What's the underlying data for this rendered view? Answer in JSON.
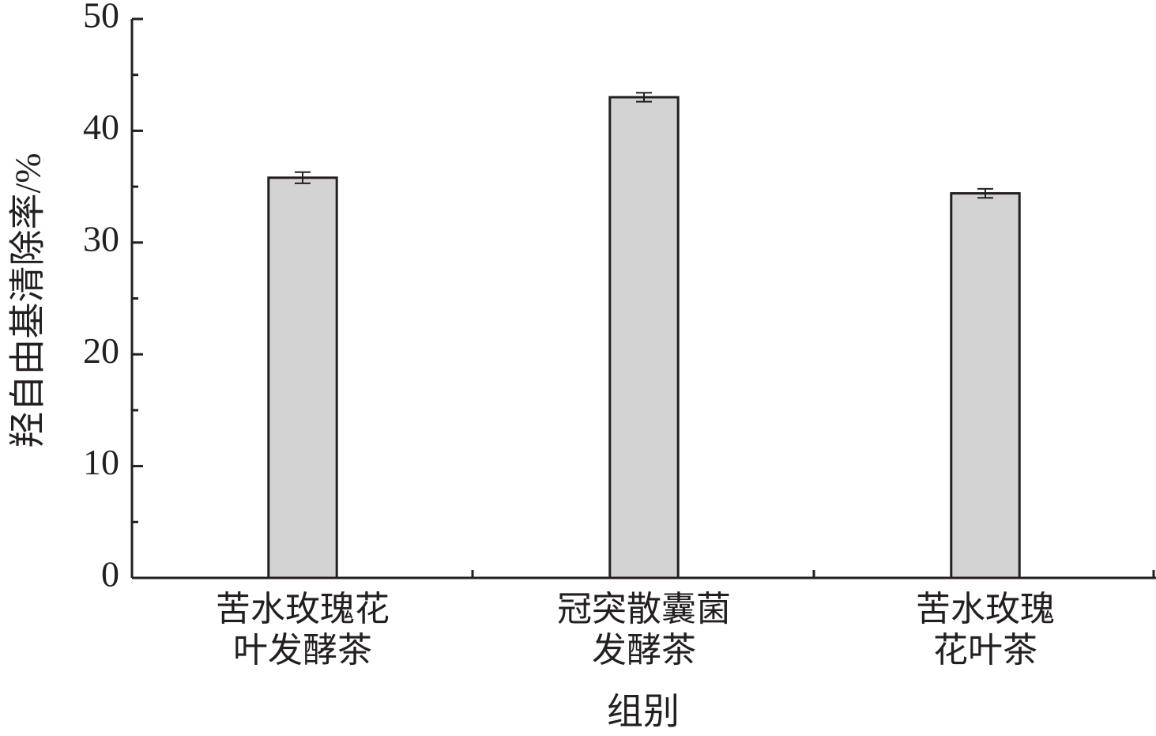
{
  "chart_data": {
    "type": "bar",
    "categories": [
      "苦水玫瑰花\n叶发酵茶",
      "冠突散囊菌\n发酵茶",
      "苦水玫瑰\n花叶茶"
    ],
    "values": [
      35.8,
      43.0,
      34.4
    ],
    "errors": [
      0.5,
      0.4,
      0.4
    ],
    "color": "#d3d3d3",
    "ylabel": "羟自由基清除率/%",
    "xlabel": "组别",
    "ylim": [
      0,
      50
    ],
    "yticks": [
      0,
      10,
      20,
      30,
      40,
      50
    ],
    "yticks_minor": [
      5,
      15,
      25,
      35,
      45
    ]
  }
}
